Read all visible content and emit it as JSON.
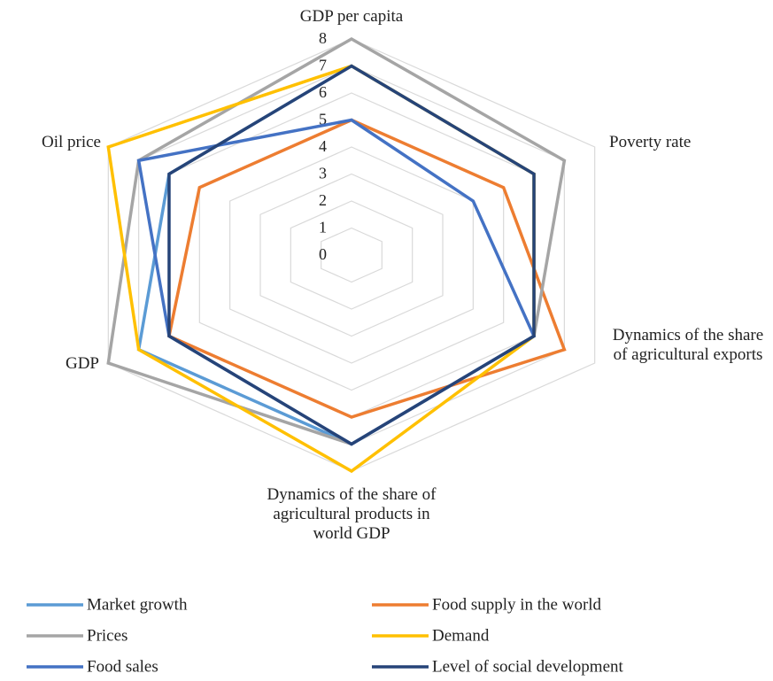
{
  "chart_data": {
    "type": "radar",
    "categories": [
      "GDP per capita",
      "Poverty rate",
      "Dynamics of the share of agricultural exports",
      "Dynamics of the share of agricultural products in world GDP",
      "GDP",
      "Oil price"
    ],
    "series": [
      {
        "name": "Market growth",
        "color": "#5b9bd5",
        "values": [
          7,
          6,
          6,
          7,
          7,
          6
        ]
      },
      {
        "name": "Food supply in the world",
        "color": "#ed7d31",
        "values": [
          5,
          5,
          7,
          6,
          6,
          5
        ]
      },
      {
        "name": "Prices",
        "color": "#a5a5a5",
        "values": [
          8,
          7,
          6,
          7,
          8,
          7
        ]
      },
      {
        "name": "Demand",
        "color": "#ffc000",
        "values": [
          7,
          6,
          6,
          8,
          7,
          8
        ]
      },
      {
        "name": "Food sales",
        "color": "#4472c4",
        "values": [
          5,
          4,
          6,
          7,
          6,
          7
        ]
      },
      {
        "name": "Level of social development",
        "color": "#264478",
        "values": [
          7,
          6,
          6,
          7,
          6,
          6
        ]
      }
    ],
    "ylim": [
      0,
      8
    ],
    "yticks": [
      0,
      1,
      2,
      3,
      4,
      5,
      6,
      7,
      8
    ],
    "grid": true,
    "legend": "bottom"
  }
}
